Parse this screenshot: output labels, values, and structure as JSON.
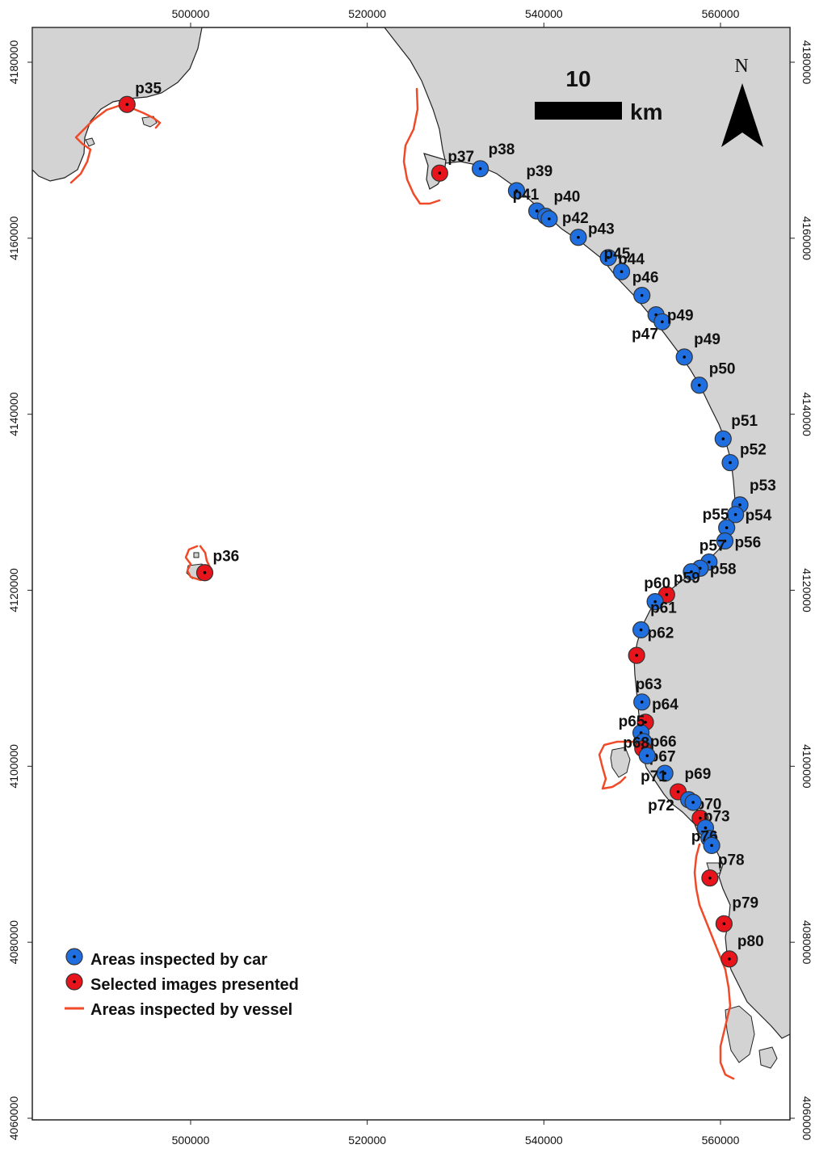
{
  "map": {
    "x_ticks": [
      "500000",
      "520000",
      "540000",
      "560000"
    ],
    "y_ticks": [
      "4180000",
      "4160000",
      "4140000",
      "4120000",
      "4100000",
      "4080000",
      "4060000"
    ],
    "north_label": "N",
    "scale_bar": {
      "value": "10",
      "unit": "km"
    },
    "colors": {
      "land": "#d3d3d3",
      "sea": "#ffffff",
      "car_point": "#1f6fe0",
      "image_point": "#e8141b",
      "vessel_line": "#f04a28"
    }
  },
  "legend": {
    "car": "Areas inspected by car",
    "images": "Selected images presented",
    "vessel": "Areas inspected by vessel"
  },
  "points": [
    {
      "id": "p35",
      "label": "p35",
      "type": "image",
      "e": 492800,
      "n": 4175200
    },
    {
      "id": "p36",
      "label": "p36",
      "type": "image",
      "e": 501600,
      "n": 4122000
    },
    {
      "id": "p37",
      "label": "p37",
      "type": "image",
      "e": 528200,
      "n": 4167400
    },
    {
      "id": "p38",
      "label": "p38",
      "type": "car",
      "e": 532800,
      "n": 4167900
    },
    {
      "id": "p39",
      "label": "p39",
      "type": "car",
      "e": 536900,
      "n": 4165400
    },
    {
      "id": "p41",
      "label": "p41",
      "type": "car",
      "e": 539200,
      "n": 4163100
    },
    {
      "id": "p40",
      "label": "p40",
      "type": "car",
      "e": 540200,
      "n": 4162500
    },
    {
      "id": "p42",
      "label": "p42",
      "type": "car",
      "e": 540600,
      "n": 4162200
    },
    {
      "id": "p43",
      "label": "p43",
      "type": "car",
      "e": 543900,
      "n": 4160100
    },
    {
      "id": "p44",
      "label": "p44",
      "type": "car",
      "e": 547300,
      "n": 4157800
    },
    {
      "id": "p45",
      "label": "p45",
      "type": "car",
      "e": 548800,
      "n": 4156200
    },
    {
      "id": "p46",
      "label": "p46",
      "type": "car",
      "e": 551100,
      "n": 4153500
    },
    {
      "id": "p47",
      "label": "p47",
      "type": "car",
      "e": 552700,
      "n": 4151300
    },
    {
      "id": "p49a",
      "label": "p49",
      "type": "car",
      "e": 553400,
      "n": 4150500
    },
    {
      "id": "p49b",
      "label": "p49",
      "type": "car",
      "e": 555900,
      "n": 4146500
    },
    {
      "id": "p50",
      "label": "p50",
      "type": "car",
      "e": 557600,
      "n": 4143300
    },
    {
      "id": "p51",
      "label": "p51",
      "type": "car",
      "e": 560300,
      "n": 4137200
    },
    {
      "id": "p52",
      "label": "p52",
      "type": "car",
      "e": 561100,
      "n": 4134500
    },
    {
      "id": "p53",
      "label": "p53",
      "type": "car",
      "e": 562200,
      "n": 4129700
    },
    {
      "id": "p54",
      "label": "p54",
      "type": "car",
      "e": 561700,
      "n": 4128600
    },
    {
      "id": "p55",
      "label": "p55",
      "type": "car",
      "e": 560700,
      "n": 4127100
    },
    {
      "id": "p56",
      "label": "p56",
      "type": "car",
      "e": 560500,
      "n": 4125600
    },
    {
      "id": "p57",
      "label": "p57",
      "type": "car",
      "e": 558700,
      "n": 4123200
    },
    {
      "id": "p58",
      "label": "p58",
      "type": "car",
      "e": 557700,
      "n": 4122500
    },
    {
      "id": "p59",
      "label": "p59",
      "type": "car",
      "e": 556700,
      "n": 4122100
    },
    {
      "id": "p60",
      "label": "p60",
      "type": "image",
      "e": 553900,
      "n": 4119500
    },
    {
      "id": "p61",
      "label": "p61",
      "type": "car",
      "e": 552600,
      "n": 4118700
    },
    {
      "id": "p62",
      "label": "p62",
      "type": "car",
      "e": 551000,
      "n": 4115500
    },
    {
      "id": "p62b",
      "label": "",
      "type": "image",
      "e": 550500,
      "n": 4112600
    },
    {
      "id": "p63",
      "label": "p63",
      "type": "car",
      "e": 551100,
      "n": 4107300
    },
    {
      "id": "p64",
      "label": "p64",
      "type": "image",
      "e": 551500,
      "n": 4105000
    },
    {
      "id": "p65",
      "label": "p65",
      "type": "car",
      "e": 551000,
      "n": 4103800
    },
    {
      "id": "p66",
      "label": "p66",
      "type": "car",
      "e": 551300,
      "n": 4102800
    },
    {
      "id": "p67",
      "label": "p67",
      "type": "image",
      "e": 551200,
      "n": 4102000
    },
    {
      "id": "p68",
      "label": "p68",
      "type": "car",
      "e": 551700,
      "n": 4101200
    },
    {
      "id": "p71",
      "label": "p71",
      "type": "car",
      "e": 553700,
      "n": 4099200
    },
    {
      "id": "p69",
      "label": "p69",
      "type": "image",
      "e": 555200,
      "n": 4097100
    },
    {
      "id": "p70",
      "label": "p70",
      "type": "car",
      "e": 556400,
      "n": 4096200
    },
    {
      "id": "p72",
      "label": "p72",
      "type": "car",
      "e": 556900,
      "n": 4095900
    },
    {
      "id": "p73",
      "label": "p73",
      "type": "image",
      "e": 557700,
      "n": 4094100
    },
    {
      "id": "p74",
      "label": "",
      "type": "car",
      "e": 558300,
      "n": 4093000
    },
    {
      "id": "p76",
      "label": "p76",
      "type": "car",
      "e": 558700,
      "n": 4091800
    },
    {
      "id": "p77",
      "label": "",
      "type": "car",
      "e": 559000,
      "n": 4091000
    },
    {
      "id": "p78",
      "label": "p78",
      "type": "image",
      "e": 558800,
      "n": 4087300
    },
    {
      "id": "p79",
      "label": "p79",
      "type": "image",
      "e": 560400,
      "n": 4082100
    },
    {
      "id": "p80",
      "label": "p80",
      "type": "image",
      "e": 561000,
      "n": 4078100
    }
  ]
}
